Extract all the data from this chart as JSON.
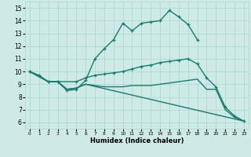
{
  "xlabel": "Humidex (Indice chaleur)",
  "xlim": [
    -0.5,
    23.5
  ],
  "ylim": [
    5.5,
    15.5
  ],
  "xticks": [
    0,
    1,
    2,
    3,
    4,
    5,
    6,
    7,
    8,
    9,
    10,
    11,
    12,
    13,
    14,
    15,
    16,
    17,
    18,
    19,
    20,
    21,
    22,
    23
  ],
  "yticks": [
    6,
    7,
    8,
    9,
    10,
    11,
    12,
    13,
    14,
    15
  ],
  "bg_color": "#ceeae6",
  "grid_color": "#aed4ce",
  "line_color": "#1a7a6e",
  "line1_x": [
    0,
    1,
    2,
    3,
    4,
    5,
    6,
    7,
    8,
    9,
    10,
    11,
    12,
    13,
    14,
    15,
    16,
    17,
    18
  ],
  "line1_y": [
    10.0,
    9.7,
    9.2,
    9.2,
    8.5,
    8.6,
    9.3,
    11.0,
    11.8,
    12.5,
    13.8,
    13.2,
    13.8,
    13.9,
    14.0,
    14.8,
    14.3,
    13.7,
    12.5
  ],
  "line2_x": [
    0,
    2,
    3,
    5,
    6,
    7,
    8,
    9,
    10,
    11,
    12,
    13,
    14,
    15,
    16,
    17,
    18,
    19,
    20,
    21,
    22,
    23
  ],
  "line2_y": [
    10.0,
    9.2,
    9.2,
    9.2,
    9.5,
    9.7,
    9.8,
    9.9,
    10.0,
    10.2,
    10.4,
    10.5,
    10.7,
    10.8,
    10.9,
    11.0,
    10.6,
    9.5,
    8.8,
    7.2,
    6.5,
    6.1
  ],
  "line3_x": [
    0,
    2,
    3,
    4,
    5,
    6,
    7,
    8,
    9,
    10,
    11,
    12,
    13,
    14,
    15,
    16,
    17,
    18,
    19,
    20,
    21,
    22,
    23
  ],
  "line3_y": [
    10.0,
    9.2,
    9.2,
    8.6,
    8.7,
    9.0,
    8.9,
    8.8,
    8.8,
    8.8,
    8.9,
    8.9,
    8.9,
    9.0,
    9.1,
    9.2,
    9.3,
    9.4,
    8.6,
    8.6,
    7.0,
    6.4,
    6.1
  ],
  "line4_x": [
    0,
    2,
    3,
    4,
    5,
    6,
    23
  ],
  "line4_y": [
    10.0,
    9.2,
    9.2,
    8.6,
    8.7,
    9.0,
    6.1
  ]
}
